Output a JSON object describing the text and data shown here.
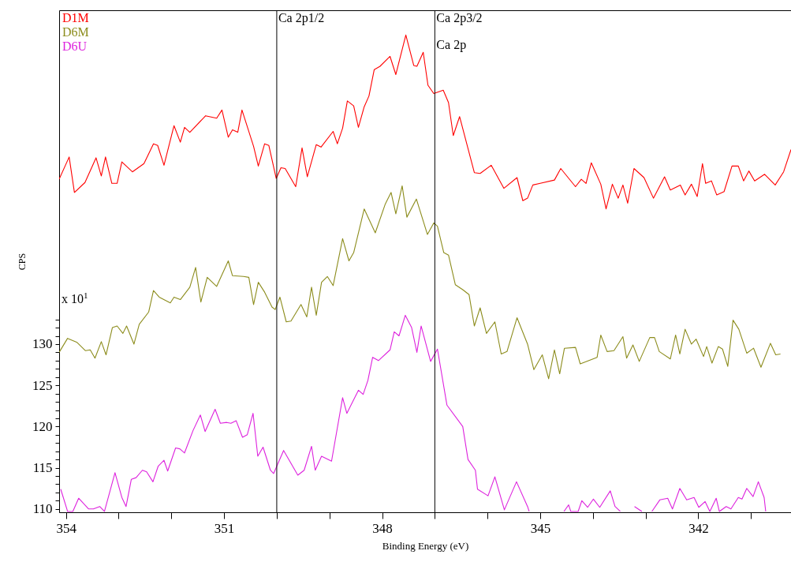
{
  "chart_data": {
    "type": "line",
    "xlabel": "Binding Energy (eV)",
    "ylabel": "CPS",
    "xlim": [
      354.13,
      340.24
    ],
    "ylim": [
      109.6,
      170.5
    ],
    "xticks": [
      354,
      {
        "value": 353,
        "label": null
      },
      {
        "value": 352,
        "label": null
      },
      351,
      {
        "value": 350,
        "label": null
      },
      {
        "value": 349,
        "label": null
      },
      348,
      {
        "value": 347,
        "label": null
      },
      {
        "value": 346,
        "label": null
      },
      345,
      {
        "value": 344,
        "label": null
      },
      {
        "value": 343,
        "label": null
      },
      342,
      {
        "value": 341,
        "label": null
      }
    ],
    "yticks": [
      110,
      {
        "value": 111,
        "label": null
      },
      {
        "value": 112,
        "label": null
      },
      {
        "value": 113,
        "label": null
      },
      {
        "value": 114,
        "label": null
      },
      115,
      {
        "value": 116,
        "label": null
      },
      {
        "value": 117,
        "label": null
      },
      {
        "value": 118,
        "label": null
      },
      {
        "value": 119,
        "label": null
      },
      120,
      {
        "value": 121,
        "label": null
      },
      {
        "value": 122,
        "label": null
      },
      {
        "value": 123,
        "label": null
      },
      {
        "value": 124,
        "label": null
      },
      125,
      {
        "value": 126,
        "label": null
      },
      {
        "value": 127,
        "label": null
      },
      {
        "value": 128,
        "label": null
      },
      {
        "value": 129,
        "label": null
      },
      130,
      {
        "value": 131,
        "label": null
      },
      {
        "value": 132,
        "label": null
      },
      {
        "value": 133,
        "label": null
      }
    ],
    "grid": false,
    "legend": "top left",
    "marker": "none",
    "line_style": "solid",
    "ref_lines": [
      {
        "axis": "x",
        "value": 350.0,
        "label": "Ca 2p1/2",
        "color": "#000000"
      },
      {
        "axis": "x",
        "value": 347.0,
        "label": "Ca 2p3/2",
        "color": "#000000"
      }
    ],
    "annotations": [
      "x 10$^{1}$",
      {
        "text": "Ca 2p",
        "x": 347.0,
        "y": 166.3
      }
    ],
    "series": [
      {
        "name": "D1M",
        "color": "#ff0000",
        "x": [
          354.13,
          353.94,
          353.84,
          353.64,
          353.43,
          353.33,
          353.25,
          353.13,
          353.03,
          352.94,
          352.74,
          352.52,
          352.34,
          352.26,
          352.14,
          351.95,
          351.83,
          351.75,
          351.65,
          351.35,
          351.14,
          351.04,
          350.92,
          350.84,
          350.74,
          350.66,
          350.44,
          350.35,
          350.23,
          350.15,
          350.01,
          349.92,
          349.84,
          349.64,
          349.52,
          349.42,
          349.25,
          349.16,
          348.93,
          348.85,
          348.75,
          348.66,
          348.54,
          348.45,
          348.34,
          348.25,
          348.15,
          348.04,
          347.85,
          347.74,
          347.55,
          347.4,
          347.34,
          347.22,
          347.13,
          347.02,
          346.84,
          346.74,
          346.65,
          346.53,
          346.25,
          346.14,
          345.93,
          345.69,
          345.44,
          345.33,
          345.24,
          345.14,
          345.0,
          344.73,
          344.61,
          344.33,
          344.22,
          344.13,
          344.03,
          343.85,
          343.75,
          343.63,
          343.52,
          343.43,
          343.34,
          343.22,
          343.03,
          342.85,
          342.64,
          342.53,
          342.34,
          342.25,
          342.13,
          342.02,
          341.92,
          341.86,
          341.75,
          341.65,
          341.51,
          341.36,
          341.24,
          341.14,
          341.04,
          340.93,
          340.74,
          340.54,
          340.38,
          340.24
        ],
        "values": [
          150.0,
          152.7,
          148.4,
          149.6,
          152.6,
          150.4,
          152.7,
          149.5,
          149.5,
          152.1,
          150.9,
          151.9,
          154.3,
          154.1,
          151.7,
          156.5,
          154.5,
          156.3,
          155.7,
          157.7,
          157.4,
          158.4,
          155.1,
          156.0,
          155.7,
          158.4,
          154.0,
          151.6,
          154.3,
          154.1,
          150.1,
          151.4,
          151.3,
          149.1,
          153.8,
          150.3,
          154.2,
          153.9,
          155.8,
          154.3,
          156.2,
          159.5,
          158.9,
          156.3,
          158.8,
          160.1,
          163.3,
          163.7,
          164.9,
          162.7,
          167.5,
          163.8,
          163.7,
          165.4,
          161.4,
          160.4,
          160.8,
          159.3,
          155.3,
          157.6,
          150.8,
          150.7,
          151.7,
          148.9,
          150.2,
          147.4,
          147.7,
          149.3,
          149.5,
          149.9,
          151.3,
          149.1,
          150.0,
          149.5,
          152.0,
          149.4,
          146.4,
          149.4,
          147.7,
          149.3,
          147.1,
          151.3,
          150.2,
          147.7,
          150.3,
          148.7,
          149.3,
          148.1,
          149.4,
          147.9,
          151.9,
          149.5,
          149.8,
          148.1,
          148.5,
          151.6,
          151.6,
          149.8,
          151.0,
          149.8,
          150.6,
          149.3,
          150.9,
          153.6
        ]
      },
      {
        "name": "D6M",
        "color": "#8c8c1c",
        "x": [
          354.13,
          353.97,
          353.79,
          353.63,
          353.54,
          353.45,
          353.33,
          353.24,
          353.12,
          353.03,
          352.92,
          352.85,
          352.71,
          352.61,
          352.43,
          352.34,
          352.23,
          352.02,
          351.95,
          351.83,
          351.65,
          351.54,
          351.44,
          351.32,
          351.14,
          350.92,
          350.84,
          350.63,
          350.53,
          350.44,
          350.35,
          350.23,
          350.09,
          350.03,
          349.94,
          349.82,
          349.73,
          349.54,
          349.43,
          349.34,
          349.25,
          349.15,
          349.04,
          348.93,
          348.75,
          348.63,
          348.54,
          348.34,
          348.13,
          347.94,
          347.83,
          347.74,
          347.62,
          347.53,
          347.35,
          347.14,
          347.02,
          346.95,
          346.83,
          346.74,
          346.61,
          346.47,
          346.35,
          346.25,
          346.14,
          346.02,
          345.86,
          345.74,
          345.63,
          345.44,
          345.24,
          345.12,
          344.96,
          344.84,
          344.73,
          344.63,
          344.54,
          344.33,
          344.24,
          343.92,
          343.85,
          343.73,
          343.6,
          343.43,
          343.36,
          343.24,
          343.12,
          342.92,
          342.83,
          342.74,
          342.53,
          342.43,
          342.35,
          342.25,
          342.13,
          342.04,
          341.9,
          341.84,
          341.74,
          341.62,
          341.54,
          341.44,
          341.34,
          341.23,
          341.08,
          340.95,
          340.81,
          340.63,
          340.53,
          340.44
        ],
        "values": [
          129.0,
          130.7,
          130.2,
          129.2,
          129.3,
          128.3,
          130.3,
          128.7,
          132.0,
          132.2,
          131.3,
          132.2,
          130.0,
          132.4,
          133.9,
          136.5,
          135.7,
          135.0,
          135.7,
          135.4,
          136.9,
          139.3,
          135.1,
          138.1,
          137.0,
          140.1,
          138.3,
          138.2,
          138.1,
          134.8,
          137.5,
          136.3,
          134.5,
          134.2,
          135.7,
          132.7,
          132.8,
          134.8,
          133.3,
          136.9,
          133.5,
          137.5,
          138.2,
          137.1,
          142.8,
          140.1,
          141.1,
          146.4,
          143.5,
          147.0,
          148.4,
          145.8,
          149.2,
          145.4,
          147.6,
          143.3,
          144.7,
          144.3,
          141.1,
          140.8,
          137.2,
          136.6,
          136.0,
          132.2,
          134.4,
          131.3,
          132.7,
          128.8,
          129.1,
          133.2,
          130.0,
          126.9,
          128.7,
          125.8,
          129.3,
          126.4,
          129.5,
          129.6,
          127.6,
          128.4,
          131.1,
          129.1,
          129.2,
          130.9,
          128.3,
          129.9,
          127.9,
          130.8,
          130.8,
          129.1,
          128.2,
          131.1,
          128.8,
          131.8,
          130.0,
          130.6,
          128.5,
          129.7,
          127.7,
          129.7,
          129.4,
          127.3,
          132.9,
          131.8,
          128.9,
          129.5,
          127.2,
          130.1,
          128.7,
          128.8
        ]
      },
      {
        "name": "D6U",
        "color": "#dd22dd",
        "x": [
          354.1,
          353.97,
          353.87,
          353.76,
          353.57,
          353.48,
          353.36,
          353.27,
          353.07,
          352.94,
          352.86,
          352.76,
          352.67,
          352.55,
          352.47,
          352.35,
          352.25,
          352.14,
          352.07,
          351.92,
          351.84,
          351.75,
          351.59,
          351.45,
          351.36,
          351.17,
          351.07,
          350.95,
          350.87,
          350.77,
          350.65,
          350.56,
          350.45,
          350.36,
          350.26,
          350.12,
          350.06,
          349.87,
          349.6,
          349.48,
          349.34,
          349.27,
          349.15,
          348.96,
          348.75,
          348.67,
          348.45,
          348.36,
          348.27,
          348.18,
          348.07,
          347.85,
          347.77,
          347.68,
          347.56,
          347.44,
          347.34,
          347.26,
          347.08,
          346.95,
          346.77,
          346.47,
          346.37,
          346.23,
          346.19,
          345.99,
          345.86,
          345.68,
          345.45,
          345.24,
          345.21,
          344.9,
          344.55,
          344.46,
          344.42,
          344.28,
          344.21,
          344.1,
          343.99,
          343.87,
          343.67,
          343.58,
          343.48,
          343.35,
          343.21,
          343.07,
          342.98,
          342.88,
          342.73,
          342.58,
          342.49,
          342.35,
          342.22,
          342.08,
          341.99,
          341.87,
          341.78,
          341.66,
          341.6,
          341.47,
          341.38,
          341.24,
          341.17,
          341.08,
          340.96,
          340.86,
          340.75,
          340.72
        ],
        "values": [
          112.4,
          109.7,
          109.7,
          111.3,
          110.0,
          110.0,
          110.3,
          109.7,
          114.4,
          111.4,
          110.3,
          113.6,
          113.8,
          114.7,
          114.5,
          113.3,
          115.2,
          115.9,
          114.6,
          117.4,
          117.3,
          116.8,
          119.5,
          121.4,
          119.4,
          122.1,
          120.4,
          120.5,
          120.4,
          120.7,
          118.7,
          119.0,
          121.6,
          116.4,
          117.5,
          114.7,
          114.3,
          117.1,
          114.1,
          114.7,
          117.6,
          114.7,
          116.4,
          115.8,
          123.5,
          121.6,
          124.4,
          123.9,
          125.6,
          128.4,
          128.0,
          129.3,
          131.5,
          131.0,
          133.5,
          132.0,
          129.0,
          132.2,
          127.9,
          129.4,
          122.6,
          120.0,
          116.0,
          114.7,
          112.4,
          111.6,
          113.9,
          109.9,
          113.3,
          110.3,
          109.7,
          null,
          109.7,
          110.5,
          109.7,
          109.7,
          111.0,
          110.2,
          111.2,
          110.2,
          112.2,
          110.3,
          109.7,
          null,
          110.3,
          109.7,
          null,
          109.7,
          111.1,
          111.3,
          110.0,
          112.5,
          111.1,
          111.4,
          110.2,
          110.9,
          109.7,
          111.3,
          109.7,
          110.3,
          110.0,
          111.4,
          111.2,
          112.5,
          111.5,
          113.3,
          111.4,
          109.7
        ]
      }
    ]
  }
}
